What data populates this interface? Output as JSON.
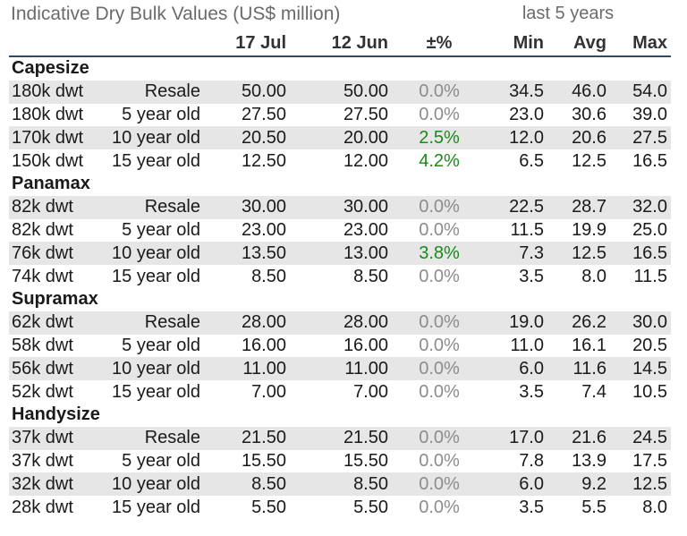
{
  "title": "Indicative Dry Bulk Values (US$ million)",
  "subheading": "last 5 years",
  "columns": [
    "17 Jul",
    "12 Jun",
    "±%",
    "Min",
    "Avg",
    "Max"
  ],
  "sections": [
    {
      "name": "Capesize",
      "rows": [
        {
          "size": "180k dwt",
          "age": "Resale",
          "cur": "50.00",
          "prev": "50.00",
          "chg": "0.0%",
          "min": "34.5",
          "avg": "46.0",
          "max": "54.0"
        },
        {
          "size": "180k dwt",
          "age": "5 year old",
          "cur": "27.50",
          "prev": "27.50",
          "chg": "0.0%",
          "min": "23.0",
          "avg": "30.6",
          "max": "39.0"
        },
        {
          "size": "170k dwt",
          "age": "10 year old",
          "cur": "20.50",
          "prev": "20.00",
          "chg": "2.5%",
          "min": "12.0",
          "avg": "20.6",
          "max": "27.5"
        },
        {
          "size": "150k dwt",
          "age": "15 year old",
          "cur": "12.50",
          "prev": "12.00",
          "chg": "4.2%",
          "min": "6.5",
          "avg": "12.5",
          "max": "16.5"
        }
      ]
    },
    {
      "name": "Panamax",
      "rows": [
        {
          "size": "82k dwt",
          "age": "Resale",
          "cur": "30.00",
          "prev": "30.00",
          "chg": "0.0%",
          "min": "22.5",
          "avg": "28.7",
          "max": "32.0"
        },
        {
          "size": "82k dwt",
          "age": "5 year old",
          "cur": "23.00",
          "prev": "23.00",
          "chg": "0.0%",
          "min": "11.5",
          "avg": "19.9",
          "max": "25.0"
        },
        {
          "size": "76k dwt",
          "age": "10 year old",
          "cur": "13.50",
          "prev": "13.00",
          "chg": "3.8%",
          "min": "7.3",
          "avg": "12.5",
          "max": "16.5"
        },
        {
          "size": "74k dwt",
          "age": "15 year old",
          "cur": "8.50",
          "prev": "8.50",
          "chg": "0.0%",
          "min": "3.5",
          "avg": "8.0",
          "max": "11.5"
        }
      ]
    },
    {
      "name": "Supramax",
      "rows": [
        {
          "size": "62k dwt",
          "age": "Resale",
          "cur": "28.00",
          "prev": "28.00",
          "chg": "0.0%",
          "min": "19.0",
          "avg": "26.2",
          "max": "30.0"
        },
        {
          "size": "58k dwt",
          "age": "5 year old",
          "cur": "16.00",
          "prev": "16.00",
          "chg": "0.0%",
          "min": "11.0",
          "avg": "16.1",
          "max": "20.5"
        },
        {
          "size": "56k dwt",
          "age": "10 year old",
          "cur": "11.00",
          "prev": "11.00",
          "chg": "0.0%",
          "min": "6.0",
          "avg": "11.6",
          "max": "14.5"
        },
        {
          "size": "52k dwt",
          "age": "15 year old",
          "cur": "7.00",
          "prev": "7.00",
          "chg": "0.0%",
          "min": "3.5",
          "avg": "7.4",
          "max": "10.5"
        }
      ]
    },
    {
      "name": "Handysize",
      "rows": [
        {
          "size": "37k dwt",
          "age": "Resale",
          "cur": "21.50",
          "prev": "21.50",
          "chg": "0.0%",
          "min": "17.0",
          "avg": "21.6",
          "max": "24.5"
        },
        {
          "size": "37k dwt",
          "age": "5 year old",
          "cur": "15.50",
          "prev": "15.50",
          "chg": "0.0%",
          "min": "7.8",
          "avg": "13.9",
          "max": "17.5"
        },
        {
          "size": "32k dwt",
          "age": "10 year old",
          "cur": "8.50",
          "prev": "8.50",
          "chg": "0.0%",
          "min": "6.0",
          "avg": "9.2",
          "max": "12.5"
        },
        {
          "size": "28k dwt",
          "age": "15 year old",
          "cur": "5.50",
          "prev": "5.50",
          "chg": "0.0%",
          "min": "3.5",
          "avg": "5.5",
          "max": "8.0"
        }
      ]
    }
  ],
  "colors": {
    "positive_change": "#1a8a1a",
    "neutral_change": "#8c8c8c",
    "row_shade": "#e6e6e6",
    "header_rule": "#2d4a6b"
  }
}
